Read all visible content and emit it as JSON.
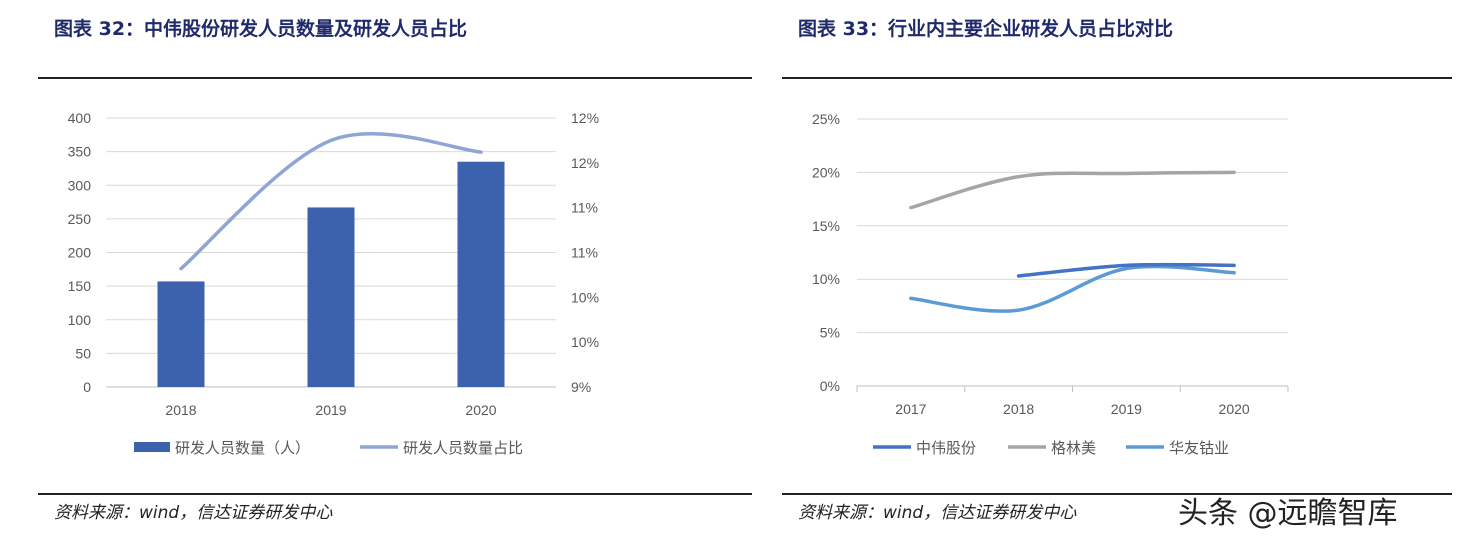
{
  "left": {
    "title": "图表 32：中伟股份研发人员数量及研发人员占比",
    "source": "资料来源：wind，信达证券研发中心"
  },
  "right": {
    "title": "图表 33：行业内主要企业研发人员占比对比",
    "source": "资料来源：wind，信达证券研发中心"
  },
  "watermark": "头条 @远瞻智库",
  "colors": {
    "bar": "#3d62ad",
    "ratio_line": "#8fa5d5",
    "zhongwei": "#4472c4",
    "gem": "#a5a5a5",
    "huayou": "#5b9bd5"
  },
  "chart_data": [
    {
      "type": "bar",
      "categories": [
        "2018",
        "2019",
        "2020"
      ],
      "series": [
        {
          "name": "研发人员数量（人）",
          "type": "bar",
          "axis": "left",
          "values": [
            157,
            267,
            335
          ]
        },
        {
          "name": "研发人员数量占比",
          "type": "line",
          "axis": "right",
          "values": [
            10.32,
            11.75,
            11.62
          ]
        }
      ],
      "y_left": {
        "min": 0,
        "max": 400,
        "ticks": [
          "0",
          "50",
          "100",
          "150",
          "200",
          "250",
          "300",
          "350",
          "400"
        ]
      },
      "y_right": {
        "min": 9,
        "max": 12,
        "ticks": [
          "9%",
          "10%",
          "10%",
          "11%",
          "11%",
          "12%",
          "12%"
        ]
      },
      "grid": true,
      "legend": "bottom"
    },
    {
      "type": "line",
      "categories": [
        "2017",
        "2018",
        "2019",
        "2020"
      ],
      "series": [
        {
          "name": "中伟股份",
          "values": [
            null,
            10.3,
            11.3,
            11.3
          ]
        },
        {
          "name": "格林美",
          "values": [
            16.7,
            19.6,
            19.9,
            20.0
          ]
        },
        {
          "name": "华友钴业",
          "values": [
            8.2,
            7.1,
            11.0,
            10.6
          ]
        }
      ],
      "y": {
        "min": 0,
        "max": 25,
        "ticks": [
          "0%",
          "5%",
          "10%",
          "15%",
          "20%",
          "25%"
        ]
      },
      "grid": true,
      "legend": "bottom"
    }
  ]
}
